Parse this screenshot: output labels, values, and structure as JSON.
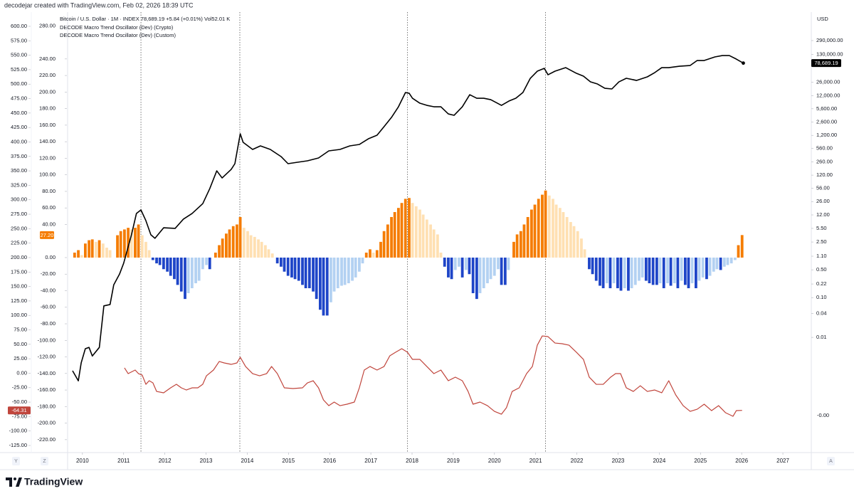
{
  "credit": "decodejar created with TradingView.com, Feb 02, 2026 18:39 UTC",
  "brand": "TradingView",
  "chart_data": {
    "type": "line",
    "legend_lines": [
      "Bitcoin / U.S. Dollar · 1M · INDEX  78,689.19 +5.84 (+0.01%)  Vol52.01 K",
      "DECODE Macro Trend Oscillator (Dev) (Crypto)",
      "DECODE Macro Trend Oscillator (Dev) (Custom)"
    ],
    "y2_unit": "USD",
    "y2_zero_label": "-0.00",
    "corner_labels": [
      "Y",
      "Z",
      "A"
    ],
    "xlim": [
      2009.64,
      2027.69
    ],
    "xticks": [
      2010,
      2011,
      2012,
      2013,
      2014,
      2015,
      2016,
      2017,
      2018,
      2019,
      2020,
      2021,
      2022,
      2023,
      2024,
      2025,
      2026,
      2027
    ],
    "ylim": [
      -137.3,
      624.6
    ],
    "yticks": [
      {
        "value": 600,
        "label": "600.00"
      },
      {
        "value": 575,
        "label": "575.00"
      },
      {
        "value": 550,
        "label": "550.00"
      },
      {
        "value": 525,
        "label": "525.00"
      },
      {
        "value": 500,
        "label": "500.00"
      },
      {
        "value": 475,
        "label": "475.00"
      },
      {
        "value": 450,
        "label": "450.00"
      },
      {
        "value": 425,
        "label": "425.00"
      },
      {
        "value": 400,
        "label": "400.00"
      },
      {
        "value": 375,
        "label": "375.00"
      },
      {
        "value": 350,
        "label": "350.00"
      },
      {
        "value": 325,
        "label": "325.00"
      },
      {
        "value": 300,
        "label": "300.00"
      },
      {
        "value": 275,
        "label": "275.00"
      },
      {
        "value": 250,
        "label": "250.00"
      },
      {
        "value": 225,
        "label": "225.00"
      },
      {
        "value": 200,
        "label": "200.00"
      },
      {
        "value": 175,
        "label": "175.00"
      },
      {
        "value": 150,
        "label": "150.00"
      },
      {
        "value": 125,
        "label": "125.00"
      },
      {
        "value": 100,
        "label": "100.00"
      },
      {
        "value": 75,
        "label": "75.00"
      },
      {
        "value": 50,
        "label": "50.00"
      },
      {
        "value": 25,
        "label": "25.00"
      },
      {
        "value": 0,
        "label": "0.00"
      },
      {
        "value": -25,
        "label": "-25.00"
      },
      {
        "value": -50,
        "label": "-50.00"
      },
      {
        "value": -75,
        "label": "-75.00"
      },
      {
        "value": -100,
        "label": "-100.00"
      },
      {
        "value": -125,
        "label": "-125.00"
      }
    ],
    "y3lim": [
      -235.6,
      296.6
    ],
    "y3ticks": [
      {
        "value": 280,
        "label": "280.00"
      },
      {
        "value": 240,
        "label": "240.00"
      },
      {
        "value": 220,
        "label": "220.00"
      },
      {
        "value": 200,
        "label": "200.00"
      },
      {
        "value": 180,
        "label": "180.00"
      },
      {
        "value": 160,
        "label": "160.00"
      },
      {
        "value": 140,
        "label": "140.00"
      },
      {
        "value": 120,
        "label": "120.00"
      },
      {
        "value": 100,
        "label": "100.00"
      },
      {
        "value": 80,
        "label": "80.00"
      },
      {
        "value": 60,
        "label": "60.00"
      },
      {
        "value": 40,
        "label": "40.00"
      },
      {
        "value": 0,
        "label": "0.00"
      },
      {
        "value": -20,
        "label": "-20.00"
      },
      {
        "value": -40,
        "label": "-40.00"
      },
      {
        "value": -60,
        "label": "-60.00"
      },
      {
        "value": -80,
        "label": "-80.00"
      },
      {
        "value": -100,
        "label": "-100.00"
      },
      {
        "value": -120,
        "label": "-120.00"
      },
      {
        "value": -140,
        "label": "-140.00"
      },
      {
        "value": -160,
        "label": "-160.00"
      },
      {
        "value": -180,
        "label": "-180.00"
      },
      {
        "value": -200,
        "label": "-200.00"
      },
      {
        "value": -220,
        "label": "-220.00"
      }
    ],
    "y2_log": true,
    "y2lim": [
      1.27e-05,
      1507000
    ],
    "y2ticks": [
      {
        "value": 290000,
        "label": "290,000.00"
      },
      {
        "value": 130000,
        "label": "130,000.00"
      },
      {
        "value": 26000,
        "label": "26,000.00"
      },
      {
        "value": 12000,
        "label": "12,000.00"
      },
      {
        "value": 5600,
        "label": "5,600.00"
      },
      {
        "value": 2600,
        "label": "2,600.00"
      },
      {
        "value": 1200,
        "label": "1,200.00"
      },
      {
        "value": 560,
        "label": "560.00"
      },
      {
        "value": 260,
        "label": "260.00"
      },
      {
        "value": 120,
        "label": "120.00"
      },
      {
        "value": 56,
        "label": "56.00"
      },
      {
        "value": 26,
        "label": "26.00"
      },
      {
        "value": 12,
        "label": "12.00"
      },
      {
        "value": 5.5,
        "label": "5.50"
      },
      {
        "value": 2.5,
        "label": "2.50"
      },
      {
        "value": 1.1,
        "label": "1.10"
      },
      {
        "value": 0.5,
        "label": "0.50"
      },
      {
        "value": 0.22,
        "label": "0.22"
      },
      {
        "value": 0.1,
        "label": "0.10"
      },
      {
        "value": 0.04,
        "label": "0.04"
      },
      {
        "value": 0.01,
        "label": "0.01"
      }
    ],
    "grid": false,
    "vlines": [
      2011.42,
      2013.82,
      2017.89,
      2021.24
    ],
    "series": [
      {
        "type": "bar",
        "axis": "y3",
        "colors": {
          "rising_above": "#f57c00",
          "falling_above": "#ffe0b2",
          "falling_below": "#1e45c8",
          "rising_below": "#b3d1f2"
        },
        "last_label": "27.20",
        "color": "#f57c00",
        "x": [
          2009.81,
          2009.9,
          2009.98,
          2010.07,
          2010.16,
          2010.24,
          2010.33,
          2010.41,
          2010.5,
          2010.59,
          2010.67,
          2010.85,
          2010.93,
          2011.02,
          2011.11,
          2011.19,
          2011.28,
          2011.36,
          2011.45,
          2011.54,
          2011.62,
          2011.71,
          2011.8,
          2011.88,
          2011.97,
          2012.06,
          2012.14,
          2012.23,
          2012.31,
          2012.4,
          2012.49,
          2012.57,
          2012.66,
          2012.75,
          2012.83,
          2012.92,
          2013.01,
          2013.09,
          2013.23,
          2013.32,
          2013.4,
          2013.49,
          2013.57,
          2013.66,
          2013.75,
          2013.83,
          2013.92,
          2014.01,
          2014.09,
          2014.18,
          2014.27,
          2014.35,
          2014.44,
          2014.52,
          2014.61,
          2014.73,
          2014.82,
          2014.9,
          2014.99,
          2015.08,
          2015.16,
          2015.25,
          2015.34,
          2015.42,
          2015.51,
          2015.6,
          2015.68,
          2015.77,
          2015.85,
          2015.94,
          2016.03,
          2016.11,
          2016.2,
          2016.29,
          2016.37,
          2016.46,
          2016.55,
          2016.63,
          2016.72,
          2016.8,
          2016.89,
          2016.98,
          2017.06,
          2017.15,
          2017.24,
          2017.32,
          2017.41,
          2017.5,
          2017.58,
          2017.67,
          2017.75,
          2017.84,
          2017.93,
          2018.01,
          2018.1,
          2018.19,
          2018.27,
          2018.36,
          2018.45,
          2018.53,
          2018.62,
          2018.7,
          2018.79,
          2018.88,
          2018.96,
          2019.05,
          2019.14,
          2019.22,
          2019.31,
          2019.39,
          2019.48,
          2019.57,
          2019.65,
          2019.74,
          2019.83,
          2019.91,
          2020,
          2020.09,
          2020.17,
          2020.26,
          2020.34,
          2020.47,
          2020.55,
          2020.64,
          2020.72,
          2020.81,
          2020.9,
          2020.98,
          2021.07,
          2021.16,
          2021.24,
          2021.33,
          2021.42,
          2021.5,
          2021.59,
          2021.67,
          2021.76,
          2021.85,
          2021.93,
          2022.02,
          2022.11,
          2022.19,
          2022.3,
          2022.38,
          2022.47,
          2022.56,
          2022.64,
          2022.73,
          2022.81,
          2022.9,
          2022.99,
          2023.07,
          2023.16,
          2023.25,
          2023.33,
          2023.42,
          2023.51,
          2023.59,
          2023.68,
          2023.76,
          2023.85,
          2023.94,
          2024.02,
          2024.11,
          2024.2,
          2024.28,
          2024.37,
          2024.45,
          2024.54,
          2024.63,
          2024.71,
          2024.8,
          2024.89,
          2024.97,
          2025.06,
          2025.15,
          2025.23,
          2025.32,
          2025.4,
          2025.49,
          2025.58,
          2025.66,
          2025.75,
          2025.84,
          2025.92,
          2026.01
        ],
        "values": [
          6,
          9,
          3,
          17,
          21,
          22,
          19,
          21,
          17,
          12,
          9,
          27,
          32,
          34,
          36,
          34,
          36,
          40,
          27,
          19,
          9,
          -3,
          -7,
          -9,
          -14,
          -17,
          -22,
          -26,
          -33,
          -41,
          -50,
          -43,
          -37,
          -31,
          -28,
          -14,
          -9,
          -14,
          6,
          15,
          23,
          29,
          34,
          38,
          40,
          49,
          36,
          32,
          27,
          25,
          22,
          19,
          15,
          10,
          5,
          -7,
          -11,
          -17,
          -22,
          -24,
          -26,
          -28,
          -33,
          -37,
          -37,
          -41,
          -50,
          -63,
          -70,
          -70,
          -54,
          -41,
          -37,
          -34,
          -33,
          -31,
          -28,
          -24,
          -17,
          -7,
          6,
          10,
          6,
          9,
          19,
          32,
          40,
          49,
          55,
          60,
          66,
          71,
          72,
          66,
          62,
          58,
          52,
          46,
          40,
          34,
          28,
          6,
          -11,
          -24,
          -26,
          -15,
          -11,
          -24,
          -15,
          -20,
          -43,
          -50,
          -43,
          -37,
          -31,
          -26,
          -22,
          -14,
          -33,
          -33,
          -15,
          19,
          28,
          32,
          40,
          49,
          58,
          64,
          71,
          76,
          81,
          75,
          71,
          64,
          60,
          55,
          49,
          43,
          38,
          32,
          23,
          10,
          -14,
          -20,
          -28,
          -34,
          -37,
          -31,
          -37,
          -31,
          -37,
          -40,
          -37,
          -40,
          -37,
          -33,
          -28,
          -24,
          -28,
          -31,
          -33,
          -33,
          -31,
          -37,
          -31,
          -34,
          -31,
          -37,
          -28,
          -33,
          -37,
          -31,
          -37,
          -28,
          -24,
          -26,
          -22,
          -17,
          -14,
          -15,
          -11,
          -9,
          -7,
          -3,
          15,
          27.2
        ]
      },
      {
        "type": "line",
        "axis": "y",
        "color": "#c0453c",
        "last_label": "-64.31",
        "x": [
          2011.02,
          2011.11,
          2011.28,
          2011.36,
          2011.45,
          2011.54,
          2011.62,
          2011.71,
          2011.8,
          2011.97,
          2012.14,
          2012.28,
          2012.4,
          2012.52,
          2012.66,
          2012.8,
          2012.92,
          2013.01,
          2013.18,
          2013.32,
          2013.44,
          2013.61,
          2013.75,
          2013.83,
          2013.96,
          2014.13,
          2014.3,
          2014.47,
          2014.59,
          2014.73,
          2014.9,
          2015.11,
          2015.34,
          2015.46,
          2015.6,
          2015.73,
          2015.85,
          2015.98,
          2016.11,
          2016.25,
          2016.42,
          2016.6,
          2016.72,
          2016.84,
          2016.98,
          2017.15,
          2017.32,
          2017.46,
          2017.6,
          2017.75,
          2017.89,
          2018.01,
          2018.19,
          2018.36,
          2018.53,
          2018.7,
          2018.88,
          2019.05,
          2019.22,
          2019.36,
          2019.48,
          2019.65,
          2019.83,
          2020,
          2020.17,
          2020.29,
          2020.43,
          2020.6,
          2020.78,
          2020.92,
          2021.04,
          2021.16,
          2021.3,
          2021.47,
          2021.64,
          2021.81,
          2021.99,
          2022.16,
          2022.3,
          2022.47,
          2022.64,
          2022.82,
          2022.94,
          2023.06,
          2023.2,
          2023.37,
          2023.54,
          2023.71,
          2023.89,
          2024.06,
          2024.23,
          2024.4,
          2024.58,
          2024.75,
          2024.92,
          2025.09,
          2025.27,
          2025.44,
          2025.61,
          2025.79,
          2025.87,
          2026.01
        ],
        "values": [
          9.2,
          -0.7,
          5.5,
          -0.7,
          -3.2,
          -19.2,
          -13,
          -16.7,
          -31.5,
          -33.9,
          -25.3,
          -19.2,
          -25.3,
          -29,
          -25.3,
          -25.3,
          -19.2,
          -4.4,
          5.5,
          20.3,
          17.8,
          15.3,
          17.8,
          27.6,
          11.6,
          -0.7,
          -4.4,
          -0.7,
          11.6,
          -0.7,
          -25.3,
          -26.5,
          -25.3,
          -16.7,
          -13,
          -25.3,
          -46.2,
          -56.1,
          -49.9,
          -56.1,
          -53.6,
          -49.9,
          -25.3,
          5.5,
          11.6,
          5.5,
          11.6,
          30.1,
          36.2,
          42.4,
          36.2,
          23.9,
          23.9,
          11.6,
          -0.7,
          5.5,
          -13,
          -6.8,
          -13,
          -31.5,
          -53.6,
          -49.9,
          -56.1,
          -66,
          -70.9,
          -59.8,
          -31.5,
          -25.3,
          -0.7,
          11.6,
          48.5,
          64.5,
          63.3,
          52.2,
          51,
          48.5,
          36.2,
          23.9,
          -6.8,
          -19.2,
          -19.2,
          -6.8,
          -0.7,
          -0.7,
          -25.3,
          -31.5,
          -21.7,
          -31.5,
          -29,
          -33.9,
          -13,
          -37.6,
          -56.1,
          -66,
          -62.3,
          -53.6,
          -64.7,
          -56.1,
          -68.4,
          -74.5,
          -64.7,
          -64.31
        ]
      },
      {
        "type": "line",
        "axis": "y2",
        "color": "#000000",
        "last_label": "78,689.19",
        "x": [
          2009.76,
          2009.9,
          2009.97,
          2010.07,
          2010.16,
          2010.24,
          2010.41,
          2010.52,
          2010.67,
          2010.76,
          2010.9,
          2011.0,
          2011.19,
          2011.31,
          2011.42,
          2011.54,
          2011.66,
          2011.76,
          2011.97,
          2012.25,
          2012.45,
          2012.66,
          2012.92,
          2013.09,
          2013.26,
          2013.39,
          2013.61,
          2013.7,
          2013.83,
          2013.9,
          2014.13,
          2014.32,
          2014.56,
          2014.82,
          2014.99,
          2015.22,
          2015.46,
          2015.73,
          2015.98,
          2016.25,
          2016.49,
          2016.72,
          2016.94,
          2017.15,
          2017.32,
          2017.5,
          2017.67,
          2017.84,
          2017.93,
          2018.01,
          2018.19,
          2018.36,
          2018.53,
          2018.7,
          2018.88,
          2019.02,
          2019.22,
          2019.4,
          2019.57,
          2019.74,
          2019.91,
          2020.17,
          2020.35,
          2020.52,
          2020.69,
          2020.87,
          2021.04,
          2021.21,
          2021.3,
          2021.47,
          2021.73,
          2021.99,
          2022.16,
          2022.33,
          2022.5,
          2022.68,
          2022.85,
          2023.02,
          2023.2,
          2023.45,
          2023.71,
          2023.89,
          2024.06,
          2024.23,
          2024.49,
          2024.75,
          2024.92,
          2025.09,
          2025.35,
          2025.53,
          2025.7,
          2025.87,
          2026.04
        ],
        "values": [
          0.00145,
          0.00081,
          0.0023,
          0.0052,
          0.0056,
          0.0034,
          0.0056,
          0.062,
          0.067,
          0.21,
          0.39,
          0.73,
          3.8,
          13,
          16,
          8.6,
          3.8,
          3.1,
          5.7,
          5.5,
          9.4,
          13,
          23,
          55,
          154,
          102,
          167,
          233,
          1315,
          802,
          531,
          652,
          531,
          352,
          233,
          253,
          275,
          324,
          489,
          531,
          652,
          708,
          984,
          1210,
          1984,
          3388,
          6285,
          14320,
          13740,
          10300,
          7720,
          6820,
          6285,
          6285,
          4160,
          3835,
          6285,
          12650,
          10300,
          10300,
          9480,
          6820,
          8730,
          10300,
          14320,
          32660,
          49320,
          58070,
          40090,
          49320,
          60530,
          43550,
          36980,
          26550,
          23500,
          18330,
          17620,
          26550,
          32660,
          28840,
          35480,
          45390,
          60530,
          60530,
          65770,
          68550,
          91410,
          91410,
          112500,
          121900,
          121900,
          99310,
          78689.19
        ]
      }
    ]
  }
}
